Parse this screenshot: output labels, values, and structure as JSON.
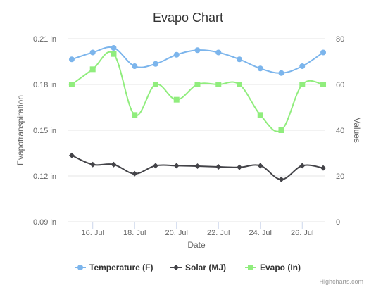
{
  "chart_data": {
    "type": "line",
    "title": "Evapo Chart",
    "xlabel": "Date",
    "ylabel_left": "Evapotranspiration",
    "ylabel_right": "Values",
    "credits": "Highcharts.com",
    "x_days": [
      15,
      16,
      17,
      18,
      19,
      20,
      21,
      22,
      23,
      24,
      25,
      26,
      27
    ],
    "x_range": [
      14.8,
      27.1
    ],
    "x_ticks": [
      {
        "day": 16,
        "label": "16. Jul"
      },
      {
        "day": 18,
        "label": "18. Jul"
      },
      {
        "day": 20,
        "label": "20. Jul"
      },
      {
        "day": 22,
        "label": "22. Jul"
      },
      {
        "day": 24,
        "label": "24. Jul"
      },
      {
        "day": 26,
        "label": "26. Jul"
      }
    ],
    "y_left": {
      "range": [
        0.09,
        0.21
      ],
      "ticks": [
        "0.09 in",
        "0.12 in",
        "0.15 in",
        "0.18 in",
        "0.21 in"
      ],
      "tick_values": [
        0.09,
        0.12,
        0.15,
        0.18,
        0.21
      ]
    },
    "y_right": {
      "range": [
        0,
        80
      ],
      "ticks": [
        "0",
        "20",
        "40",
        "60",
        "80"
      ],
      "tick_values": [
        0,
        20,
        40,
        60,
        80
      ]
    },
    "grid": true,
    "legend_position": "bottom",
    "series": [
      {
        "name": "Temperature (F)",
        "axis": "right",
        "color": "#7cb5ec",
        "marker": "circle",
        "values": [
          71,
          74,
          76,
          68,
          69,
          73,
          75,
          74,
          71,
          67,
          65,
          68,
          74
        ]
      },
      {
        "name": "Solar (MJ)",
        "axis": "right",
        "color": "#434348",
        "marker": "diamond",
        "values": [
          29,
          25,
          25,
          21,
          24.5,
          24.5,
          24.3,
          24,
          23.8,
          24.5,
          18.5,
          24.5,
          23.5
        ]
      },
      {
        "name": "Evapo (In)",
        "axis": "left",
        "color": "#90ed7d",
        "marker": "square",
        "values": [
          0.18,
          0.19,
          0.2,
          0.16,
          0.18,
          0.17,
          0.18,
          0.18,
          0.18,
          0.16,
          0.15,
          0.18,
          0.18
        ]
      }
    ]
  }
}
